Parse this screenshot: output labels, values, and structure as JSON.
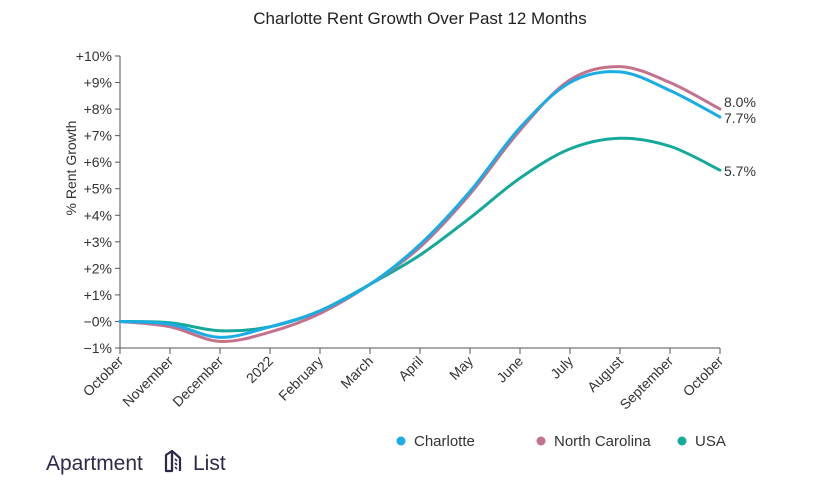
{
  "chart_data": {
    "type": "line",
    "title": "Charlotte Rent Growth Over Past 12 Months",
    "xlabel": "",
    "ylabel": "% Rent Growth",
    "categories": [
      "October",
      "November",
      "December",
      "2022",
      "February",
      "March",
      "April",
      "May",
      "June",
      "July",
      "August",
      "September",
      "October"
    ],
    "y_ticks": [
      "−1%",
      "−0%",
      "+1%",
      "+2%",
      "+3%",
      "+4%",
      "+5%",
      "+6%",
      "+7%",
      "+8%",
      "+9%",
      "+10%"
    ],
    "ylim": [
      -1,
      10
    ],
    "grid": false,
    "legend_position": "bottom-right",
    "series": [
      {
        "name": "Charlotte",
        "color": "#1aace5",
        "values": [
          0.0,
          -0.1,
          -0.6,
          -0.2,
          0.4,
          1.4,
          2.9,
          4.9,
          7.3,
          9.0,
          9.4,
          8.7,
          7.7
        ],
        "end_label": "7.7%"
      },
      {
        "name": "North Carolina",
        "color": "#c4718c",
        "values": [
          0.0,
          -0.2,
          -0.75,
          -0.4,
          0.3,
          1.4,
          2.8,
          4.8,
          7.2,
          9.1,
          9.6,
          9.0,
          8.0
        ],
        "end_label": "8.0%"
      },
      {
        "name": "USA",
        "color": "#15a99a",
        "values": [
          0.0,
          -0.05,
          -0.35,
          -0.2,
          0.4,
          1.4,
          2.5,
          3.9,
          5.4,
          6.5,
          6.9,
          6.6,
          5.7
        ],
        "end_label": "5.7%"
      }
    ]
  },
  "branding": {
    "left_text": "Apartment",
    "right_text": "List",
    "logo_icon": "apartment-list-logo-icon"
  }
}
